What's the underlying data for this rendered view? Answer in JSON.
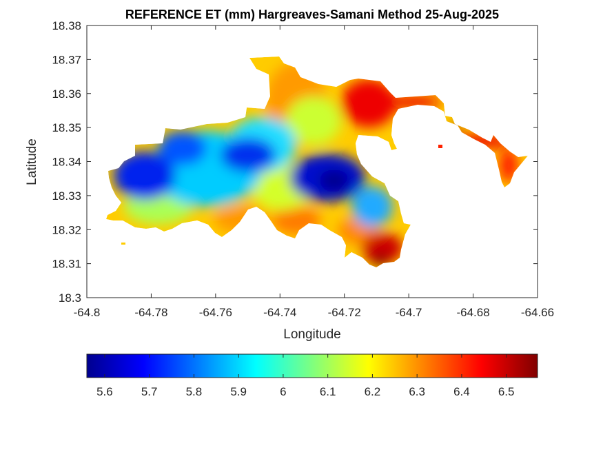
{
  "title": "REFERENCE ET (mm) Hargreaves-Samani Method  25-Aug-2025",
  "map": {
    "xlabel": "Longitude",
    "ylabel": "Latitude",
    "xlim": [
      -64.8,
      -64.66
    ],
    "ylim": [
      18.3,
      18.38
    ],
    "x_ticks": [
      "-64.8",
      "-64.78",
      "-64.76",
      "-64.74",
      "-64.72",
      "-64.7",
      "-64.68",
      "-64.66"
    ],
    "y_ticks": [
      "18.3",
      "18.31",
      "18.32",
      "18.33",
      "18.34",
      "18.35",
      "18.36",
      "18.37",
      "18.38"
    ],
    "colormap": "jet",
    "color_range": [
      5.56,
      6.57
    ],
    "region_values": {
      "west_lobe_low": 5.65,
      "central_low": 5.6,
      "north_central": 6.3,
      "northeast_high": 6.45,
      "east_peninsula": 6.45,
      "south_tip_high": 6.55,
      "southwest_edge": 6.15
    }
  },
  "colorbar": {
    "ticks": [
      "5.6",
      "5.7",
      "5.8",
      "5.9",
      "6",
      "6.1",
      "6.2",
      "6.3",
      "6.4",
      "6.5"
    ],
    "tick_values": [
      5.6,
      5.7,
      5.8,
      5.9,
      6.0,
      6.1,
      6.2,
      6.3,
      6.4,
      6.5
    ],
    "min": 5.56,
    "max": 6.57
  }
}
